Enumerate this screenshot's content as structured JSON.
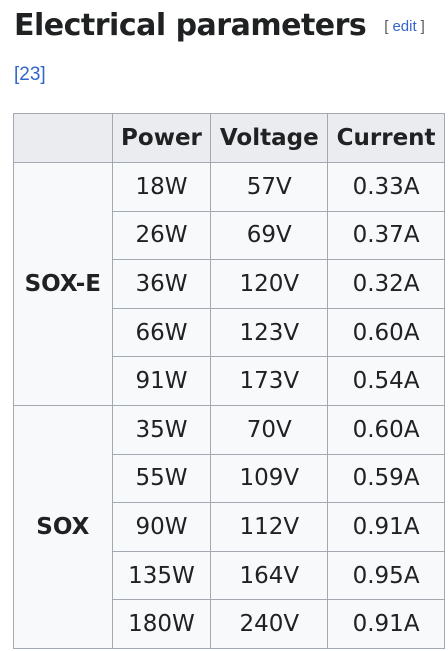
{
  "section": {
    "title": "Electrical parameters",
    "edit_open": "[",
    "edit_label": "edit",
    "edit_close": "]",
    "reference": "[23]"
  },
  "table": {
    "headers": [
      "",
      "Power",
      "Voltage",
      "Current"
    ],
    "groups": [
      {
        "name": "SOX-E",
        "rows": [
          {
            "power": "18W",
            "voltage": "57V",
            "current": "0.33A"
          },
          {
            "power": "26W",
            "voltage": "69V",
            "current": "0.37A"
          },
          {
            "power": "36W",
            "voltage": "120V",
            "current": "0.32A"
          },
          {
            "power": "66W",
            "voltage": "123V",
            "current": "0.60A"
          },
          {
            "power": "91W",
            "voltage": "173V",
            "current": "0.54A"
          }
        ]
      },
      {
        "name": "SOX",
        "rows": [
          {
            "power": "35W",
            "voltage": "70V",
            "current": "0.60A"
          },
          {
            "power": "55W",
            "voltage": "109V",
            "current": "0.59A"
          },
          {
            "power": "90W",
            "voltage": "112V",
            "current": "0.91A"
          },
          {
            "power": "135W",
            "voltage": "164V",
            "current": "0.95A"
          },
          {
            "power": "180W",
            "voltage": "240V",
            "current": "0.91A"
          }
        ]
      }
    ]
  },
  "colors": {
    "link": "#3366cc",
    "table_background": "#f8f9fa",
    "header_background": "#eaecf0",
    "border": "#a2a9b1",
    "text": "#202122"
  }
}
